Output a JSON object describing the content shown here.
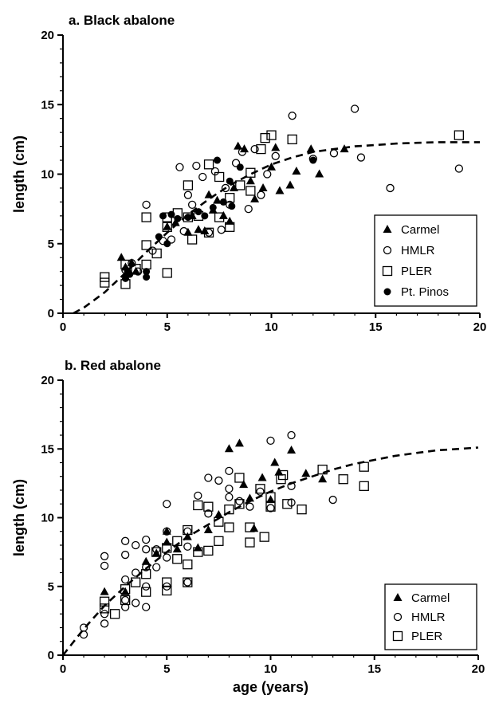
{
  "chart_data": [
    {
      "type": "scatter",
      "title": "a. Black abalone",
      "xlabel": "",
      "ylabel": "length (cm)",
      "xlim": [
        0,
        20
      ],
      "ylim": [
        0,
        20
      ],
      "xticks": [
        0,
        5,
        10,
        15,
        20
      ],
      "yticks": [
        0,
        5,
        10,
        15,
        20
      ],
      "grid": false,
      "legend_position": "bottom-right",
      "series": [
        {
          "name": "Carmel",
          "marker": "triangle",
          "points": [
            [
              2.8,
              4.0
            ],
            [
              3.0,
              2.6
            ],
            [
              3.0,
              3.3
            ],
            [
              3.3,
              3.6
            ],
            [
              3.5,
              3.0
            ],
            [
              5.0,
              6.2
            ],
            [
              5.4,
              6.5
            ],
            [
              6.0,
              5.8
            ],
            [
              6.2,
              7.0
            ],
            [
              6.5,
              6.0
            ],
            [
              6.8,
              5.9
            ],
            [
              7.0,
              8.5
            ],
            [
              7.2,
              7.4
            ],
            [
              7.4,
              8.1
            ],
            [
              7.7,
              7.0
            ],
            [
              8.0,
              6.6
            ],
            [
              8.2,
              9.0
            ],
            [
              8.4,
              12.0
            ],
            [
              8.7,
              11.8
            ],
            [
              9.0,
              9.5
            ],
            [
              9.2,
              8.2
            ],
            [
              9.6,
              9.0
            ],
            [
              10.0,
              10.5
            ],
            [
              10.2,
              11.9
            ],
            [
              10.4,
              8.8
            ],
            [
              10.9,
              9.2
            ],
            [
              11.2,
              10.2
            ],
            [
              11.9,
              11.8
            ],
            [
              12.3,
              10.0
            ],
            [
              13.5,
              11.8
            ]
          ]
        },
        {
          "name": "HMLR",
          "marker": "circle-open",
          "points": [
            [
              3.0,
              3.1
            ],
            [
              3.3,
              3.6
            ],
            [
              3.6,
              3.0
            ],
            [
              4.0,
              7.8
            ],
            [
              4.3,
              4.5
            ],
            [
              4.8,
              5.2
            ],
            [
              5.2,
              5.3
            ],
            [
              5.6,
              10.5
            ],
            [
              5.8,
              5.9
            ],
            [
              6.0,
              8.5
            ],
            [
              6.2,
              7.8
            ],
            [
              6.4,
              10.6
            ],
            [
              6.7,
              9.8
            ],
            [
              7.0,
              5.8
            ],
            [
              7.3,
              10.2
            ],
            [
              7.6,
              6.0
            ],
            [
              7.8,
              9.0
            ],
            [
              8.0,
              7.8
            ],
            [
              8.3,
              10.8
            ],
            [
              8.6,
              11.6
            ],
            [
              8.9,
              7.5
            ],
            [
              9.2,
              11.8
            ],
            [
              9.5,
              8.5
            ],
            [
              9.8,
              10.0
            ],
            [
              10.2,
              11.3
            ],
            [
              11.0,
              14.2
            ],
            [
              12.0,
              11.1
            ],
            [
              13.0,
              11.5
            ],
            [
              14.0,
              14.7
            ],
            [
              14.3,
              11.2
            ],
            [
              15.7,
              9.0
            ],
            [
              19.0,
              10.4
            ]
          ]
        },
        {
          "name": "PLER",
          "marker": "square-open",
          "points": [
            [
              2.0,
              2.6
            ],
            [
              2.0,
              2.2
            ],
            [
              3.0,
              2.1
            ],
            [
              3.0,
              3.5
            ],
            [
              3.5,
              3.2
            ],
            [
              4.0,
              4.9
            ],
            [
              4.0,
              3.5
            ],
            [
              4.0,
              6.9
            ],
            [
              4.5,
              4.3
            ],
            [
              5.0,
              2.9
            ],
            [
              5.0,
              6.2
            ],
            [
              5.0,
              6.9
            ],
            [
              5.5,
              7.2
            ],
            [
              6.0,
              6.9
            ],
            [
              6.0,
              9.2
            ],
            [
              6.2,
              5.3
            ],
            [
              6.5,
              7.0
            ],
            [
              7.0,
              10.7
            ],
            [
              7.0,
              5.8
            ],
            [
              7.5,
              9.8
            ],
            [
              7.5,
              6.9
            ],
            [
              8.0,
              8.3
            ],
            [
              8.0,
              6.2
            ],
            [
              8.5,
              9.2
            ],
            [
              9.0,
              8.8
            ],
            [
              9.0,
              10.1
            ],
            [
              9.5,
              11.8
            ],
            [
              9.7,
              12.6
            ],
            [
              10.0,
              12.8
            ],
            [
              11.0,
              12.5
            ],
            [
              19.0,
              12.8
            ]
          ]
        },
        {
          "name": "Pt. Pinos",
          "marker": "circle-filled",
          "points": [
            [
              3.0,
              2.5
            ],
            [
              3.1,
              3.0
            ],
            [
              3.2,
              2.8
            ],
            [
              4.0,
              2.6
            ],
            [
              4.0,
              3.0
            ],
            [
              4.6,
              5.5
            ],
            [
              4.8,
              7.0
            ],
            [
              5.0,
              5.0
            ],
            [
              5.2,
              7.1
            ],
            [
              5.5,
              6.8
            ],
            [
              6.0,
              6.9
            ],
            [
              6.5,
              7.3
            ],
            [
              6.8,
              7.0
            ],
            [
              7.2,
              7.6
            ],
            [
              7.4,
              11.0
            ],
            [
              7.7,
              8.0
            ],
            [
              8.0,
              9.5
            ],
            [
              8.1,
              7.7
            ],
            [
              8.5,
              10.5
            ],
            [
              12.0,
              11.0
            ]
          ]
        }
      ],
      "fit_curve": {
        "style": "dashed",
        "x": [
          0.5,
          1,
          2,
          3,
          4,
          5,
          6,
          7,
          8,
          9,
          10,
          11,
          12,
          13,
          14,
          15,
          16,
          17,
          18,
          19,
          20
        ],
        "y": [
          0.0,
          0.4,
          1.5,
          2.9,
          4.4,
          5.8,
          7.1,
          8.2,
          9.2,
          10.0,
          10.7,
          11.2,
          11.6,
          11.8,
          12.0,
          12.1,
          12.2,
          12.25,
          12.3,
          12.3,
          12.3
        ]
      }
    },
    {
      "type": "scatter",
      "title": "b. Red abalone",
      "xlabel": "age (years)",
      "ylabel": "length  (cm)",
      "xlim": [
        0,
        20
      ],
      "ylim": [
        0,
        20
      ],
      "xticks": [
        0,
        5,
        10,
        15,
        20
      ],
      "yticks": [
        0,
        5,
        10,
        15,
        20
      ],
      "grid": false,
      "legend_position": "bottom-right",
      "series": [
        {
          "name": "Carmel",
          "marker": "triangle",
          "points": [
            [
              2.0,
              4.6
            ],
            [
              3.0,
              4.6
            ],
            [
              4.0,
              6.8
            ],
            [
              4.5,
              7.4
            ],
            [
              5.0,
              8.2
            ],
            [
              5.0,
              9.0
            ],
            [
              5.5,
              7.7
            ],
            [
              6.0,
              8.6
            ],
            [
              6.5,
              7.8
            ],
            [
              7.0,
              9.1
            ],
            [
              7.5,
              10.2
            ],
            [
              8.0,
              15.0
            ],
            [
              8.5,
              15.4
            ],
            [
              8.7,
              12.4
            ],
            [
              9.0,
              11.4
            ],
            [
              9.2,
              9.2
            ],
            [
              9.6,
              12.9
            ],
            [
              10.0,
              11.3
            ],
            [
              10.2,
              14.0
            ],
            [
              10.4,
              13.3
            ],
            [
              11.0,
              14.9
            ],
            [
              11.7,
              13.2
            ],
            [
              12.5,
              12.8
            ]
          ]
        },
        {
          "name": "HMLR",
          "marker": "circle-open",
          "points": [
            [
              1.0,
              2.0
            ],
            [
              1.0,
              1.5
            ],
            [
              2.0,
              7.2
            ],
            [
              2.0,
              6.5
            ],
            [
              2.0,
              3.0
            ],
            [
              2.0,
              2.3
            ],
            [
              3.0,
              8.3
            ],
            [
              3.0,
              7.3
            ],
            [
              3.0,
              5.5
            ],
            [
              3.0,
              4.0
            ],
            [
              3.0,
              3.5
            ],
            [
              3.5,
              8.0
            ],
            [
              3.5,
              6.0
            ],
            [
              3.5,
              3.8
            ],
            [
              4.0,
              8.4
            ],
            [
              4.0,
              7.7
            ],
            [
              4.0,
              6.4
            ],
            [
              4.0,
              5.0
            ],
            [
              4.0,
              3.5
            ],
            [
              4.5,
              7.7
            ],
            [
              4.5,
              6.4
            ],
            [
              5.0,
              11.0
            ],
            [
              5.0,
              9.0
            ],
            [
              5.0,
              7.1
            ],
            [
              5.0,
              5.0
            ],
            [
              6.0,
              9.0
            ],
            [
              6.0,
              7.9
            ],
            [
              6.0,
              5.3
            ],
            [
              6.5,
              11.6
            ],
            [
              7.0,
              12.9
            ],
            [
              7.0,
              10.3
            ],
            [
              7.5,
              12.7
            ],
            [
              8.0,
              12.1
            ],
            [
              8.0,
              11.5
            ],
            [
              8.0,
              13.4
            ],
            [
              8.5,
              11.2
            ],
            [
              9.0,
              10.8
            ],
            [
              9.5,
              11.9
            ],
            [
              10.0,
              15.6
            ],
            [
              10.0,
              10.7
            ],
            [
              11.0,
              16.0
            ],
            [
              11.0,
              12.3
            ],
            [
              11.0,
              11.1
            ],
            [
              13.0,
              11.3
            ]
          ]
        },
        {
          "name": "PLER",
          "marker": "square-open",
          "points": [
            [
              2.0,
              3.9
            ],
            [
              2.0,
              3.4
            ],
            [
              2.5,
              3.0
            ],
            [
              3.0,
              4.0
            ],
            [
              3.0,
              4.8
            ],
            [
              3.5,
              5.3
            ],
            [
              4.0,
              5.9
            ],
            [
              4.0,
              4.6
            ],
            [
              4.5,
              7.5
            ],
            [
              5.0,
              4.7
            ],
            [
              5.0,
              5.3
            ],
            [
              5.0,
              7.8
            ],
            [
              5.5,
              8.3
            ],
            [
              5.5,
              7.0
            ],
            [
              6.0,
              9.1
            ],
            [
              6.0,
              6.6
            ],
            [
              6.0,
              5.3
            ],
            [
              6.5,
              10.9
            ],
            [
              6.5,
              7.5
            ],
            [
              7.0,
              10.8
            ],
            [
              7.0,
              7.6
            ],
            [
              7.5,
              9.7
            ],
            [
              7.5,
              8.3
            ],
            [
              8.0,
              10.6
            ],
            [
              8.0,
              9.3
            ],
            [
              8.5,
              11.0
            ],
            [
              8.5,
              12.9
            ],
            [
              9.0,
              9.3
            ],
            [
              9.0,
              8.2
            ],
            [
              9.5,
              12.1
            ],
            [
              9.7,
              8.6
            ],
            [
              10.0,
              10.8
            ],
            [
              10.0,
              11.5
            ],
            [
              10.5,
              12.8
            ],
            [
              10.6,
              13.1
            ],
            [
              10.8,
              11.0
            ],
            [
              11.5,
              10.6
            ],
            [
              12.5,
              13.5
            ],
            [
              13.5,
              12.8
            ],
            [
              14.5,
              13.7
            ],
            [
              14.5,
              12.3
            ]
          ]
        }
      ],
      "fit_curve": {
        "style": "dashed",
        "x": [
          0,
          1,
          2,
          3,
          4,
          5,
          6,
          7,
          8,
          9,
          10,
          11,
          12,
          13,
          14,
          15,
          16,
          17,
          18,
          19,
          20
        ],
        "y": [
          0,
          1.9,
          3.6,
          5.0,
          6.3,
          7.5,
          8.6,
          9.5,
          10.4,
          11.2,
          11.9,
          12.5,
          13.0,
          13.5,
          13.9,
          14.2,
          14.5,
          14.7,
          14.9,
          15.0,
          15.1
        ]
      }
    }
  ]
}
